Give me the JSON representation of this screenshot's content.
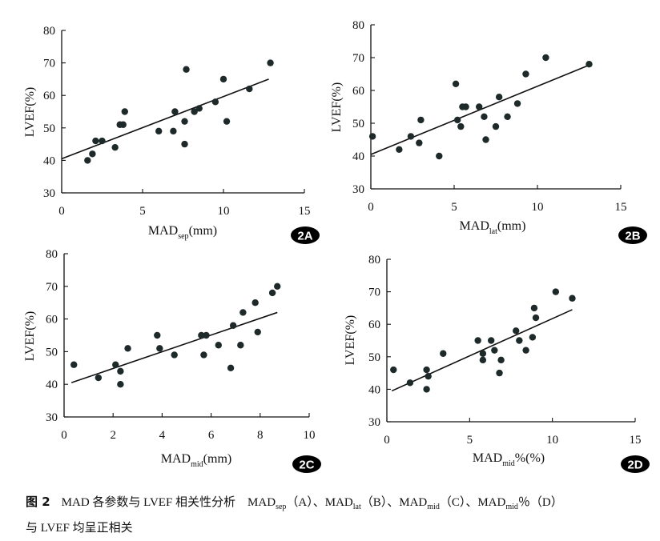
{
  "caption": {
    "label": "图 2",
    "text": "MAD 各参数与 LVEF 相关性分析　MAD",
    "sub_sep": "sep",
    "part_a": "（A）、MAD",
    "sub_lat": "lat",
    "part_b": "（B）、MAD",
    "sub_mid": "mid",
    "part_c": "（C）、MAD",
    "sub_mid2": "mid",
    "part_d": "％（D）",
    "line2": "与 LVEF 均呈正相关"
  },
  "chart_data": [
    {
      "id": "2A",
      "type": "scatter",
      "badge": "2A",
      "xlabel_main": "MAD",
      "xlabel_sub": "sep",
      "xlabel_tail": "(mm)",
      "ylabel": "LVEF(%)",
      "xlim": [
        0,
        15
      ],
      "ylim": [
        30,
        80
      ],
      "xticks": [
        0,
        5,
        10,
        15
      ],
      "yticks": [
        30,
        40,
        50,
        60,
        70,
        80
      ],
      "grid": false,
      "points": [
        [
          1.6,
          40
        ],
        [
          1.9,
          42
        ],
        [
          2.1,
          46
        ],
        [
          2.5,
          46
        ],
        [
          3.3,
          44
        ],
        [
          3.6,
          51
        ],
        [
          3.8,
          51
        ],
        [
          3.9,
          55
        ],
        [
          6.0,
          49
        ],
        [
          6.9,
          49
        ],
        [
          7.0,
          55
        ],
        [
          7.6,
          52
        ],
        [
          7.6,
          45
        ],
        [
          7.7,
          68
        ],
        [
          8.2,
          55
        ],
        [
          8.5,
          56
        ],
        [
          9.5,
          58
        ],
        [
          10.0,
          65
        ],
        [
          10.2,
          52
        ],
        [
          11.6,
          62
        ],
        [
          12.9,
          70
        ]
      ],
      "fit": [
        [
          0,
          40.5
        ],
        [
          12.8,
          65
        ]
      ]
    },
    {
      "id": "2B",
      "type": "scatter",
      "badge": "2B",
      "xlabel_main": "MAD",
      "xlabel_sub": "lat",
      "xlabel_tail": "(mm)",
      "ylabel": "LVEF(%)",
      "xlim": [
        0,
        15
      ],
      "ylim": [
        30,
        80
      ],
      "xticks": [
        0,
        5,
        10,
        15
      ],
      "yticks": [
        30,
        40,
        50,
        60,
        70,
        80
      ],
      "grid": false,
      "points": [
        [
          0.1,
          46
        ],
        [
          1.7,
          42
        ],
        [
          2.4,
          46
        ],
        [
          2.9,
          44
        ],
        [
          3.0,
          51
        ],
        [
          4.1,
          40
        ],
        [
          5.1,
          62
        ],
        [
          5.2,
          51
        ],
        [
          5.4,
          49
        ],
        [
          5.5,
          55
        ],
        [
          5.7,
          55
        ],
        [
          6.5,
          55
        ],
        [
          6.8,
          52
        ],
        [
          6.9,
          45
        ],
        [
          7.5,
          49
        ],
        [
          7.7,
          58
        ],
        [
          8.2,
          52
        ],
        [
          8.8,
          56
        ],
        [
          9.3,
          65
        ],
        [
          10.5,
          70
        ],
        [
          13.1,
          68
        ]
      ],
      "fit": [
        [
          0,
          40.5
        ],
        [
          13.0,
          67.5
        ]
      ]
    },
    {
      "id": "2C",
      "type": "scatter",
      "badge": "2C",
      "xlabel_main": "MAD",
      "xlabel_sub": "mid",
      "xlabel_tail": "(mm)",
      "ylabel": "LVEF(%)",
      "xlim": [
        0,
        10
      ],
      "ylim": [
        30,
        80
      ],
      "xticks": [
        0,
        2,
        4,
        6,
        8,
        10
      ],
      "yticks": [
        30,
        40,
        50,
        60,
        70,
        80
      ],
      "grid": false,
      "points": [
        [
          0.4,
          46
        ],
        [
          1.4,
          42
        ],
        [
          2.1,
          46
        ],
        [
          2.3,
          44
        ],
        [
          2.3,
          40
        ],
        [
          2.6,
          51
        ],
        [
          3.8,
          55
        ],
        [
          3.9,
          51
        ],
        [
          4.5,
          49
        ],
        [
          5.6,
          55
        ],
        [
          5.7,
          49
        ],
        [
          5.8,
          55
        ],
        [
          6.3,
          52
        ],
        [
          6.8,
          45
        ],
        [
          6.9,
          58
        ],
        [
          7.2,
          52
        ],
        [
          7.3,
          62
        ],
        [
          7.8,
          65
        ],
        [
          7.9,
          56
        ],
        [
          8.5,
          68
        ],
        [
          8.7,
          70
        ]
      ],
      "fit": [
        [
          0.3,
          40.5
        ],
        [
          8.7,
          62
        ]
      ]
    },
    {
      "id": "2D",
      "type": "scatter",
      "badge": "2D",
      "xlabel_main": "MAD",
      "xlabel_sub": "mid",
      "xlabel_tail": "%(%)",
      "ylabel": "LVEF(%)",
      "xlim": [
        0,
        15
      ],
      "ylim": [
        30,
        80
      ],
      "xticks": [
        0,
        5,
        10,
        15
      ],
      "yticks": [
        30,
        40,
        50,
        60,
        70,
        80
      ],
      "grid": false,
      "points": [
        [
          0.4,
          46
        ],
        [
          1.4,
          42
        ],
        [
          2.4,
          46
        ],
        [
          2.4,
          40
        ],
        [
          2.5,
          44
        ],
        [
          3.4,
          51
        ],
        [
          5.5,
          55
        ],
        [
          5.8,
          49
        ],
        [
          5.8,
          51
        ],
        [
          6.3,
          55
        ],
        [
          6.5,
          52
        ],
        [
          6.8,
          45
        ],
        [
          6.9,
          49
        ],
        [
          7.8,
          58
        ],
        [
          8.0,
          55
        ],
        [
          8.4,
          52
        ],
        [
          8.8,
          56
        ],
        [
          8.9,
          65
        ],
        [
          9.0,
          62
        ],
        [
          10.2,
          70
        ],
        [
          11.2,
          68
        ]
      ],
      "fit": [
        [
          0.3,
          39.5
        ],
        [
          11.2,
          64.5
        ]
      ]
    }
  ]
}
